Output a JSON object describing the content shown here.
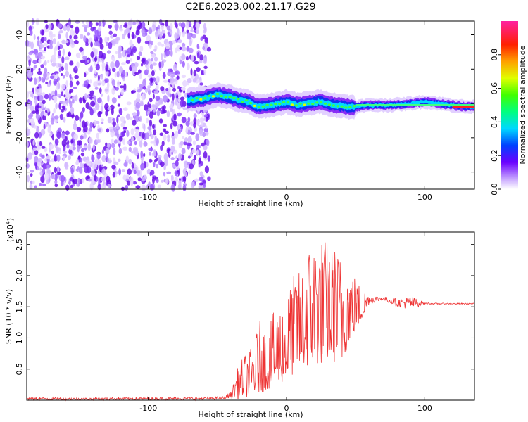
{
  "title": "C2E6.2023.002.21.17.G29",
  "chart_data": [
    {
      "type": "heatmap",
      "xlabel": "Height of straight line (km)",
      "ylabel": "Frequency (Hz)",
      "xlim": [
        -188,
        136
      ],
      "ylim": [
        -50,
        48
      ],
      "xticks": [
        -100,
        0,
        100
      ],
      "yticks": [
        -40,
        -20,
        0,
        20,
        40
      ],
      "grid": false,
      "ridge": {
        "x": [
          -72,
          -60,
          -50,
          -42,
          -35,
          -28,
          -20,
          -12,
          -5,
          0,
          8,
          15,
          25,
          35,
          45,
          50,
          60,
          75,
          90,
          100,
          110,
          120,
          130,
          136
        ],
        "frequency": [
          2,
          3,
          5,
          4,
          2,
          1,
          -2,
          -1,
          0,
          1,
          -1,
          0,
          1,
          -1,
          -2,
          -2,
          -1,
          -1,
          0,
          1,
          0,
          -1,
          -2,
          -2
        ]
      },
      "noise_region": [
        -188,
        -56
      ],
      "colorbar": {
        "label": "Normalized spectral amplitude",
        "range": [
          0.0,
          1.0
        ],
        "ticks": [
          0.0,
          0.2,
          0.4,
          0.6,
          0.8
        ]
      }
    },
    {
      "type": "line",
      "xlabel": "Height of straight line (km)",
      "ylabel": "SNR (10 * v/v)",
      "ylabel_multiplier": "(x10^4)",
      "ylabel_multiplier_base": "(x10",
      "ylabel_multiplier_exp": "4",
      "ylabel_multiplier_close": ")",
      "xlim": [
        -188,
        136
      ],
      "ylim": [
        0,
        2.7
      ],
      "xticks": [
        -100,
        0,
        100
      ],
      "yticks": [
        0.5,
        1.0,
        1.5,
        2.0,
        2.5
      ],
      "yticklabels": [
        "0.5",
        "1.0",
        "1.5",
        "2.0",
        "2.5"
      ],
      "grid": false,
      "color": "#ee3333",
      "series": [
        {
          "x": [
            -188,
            -150,
            -100,
            -60,
            -45,
            -40,
            -35,
            -30,
            -25,
            -20,
            -15,
            -10,
            -5,
            0,
            5,
            10,
            15,
            20,
            25,
            30,
            35,
            40,
            45,
            50,
            55,
            60,
            70,
            80,
            90,
            100,
            110,
            120,
            136
          ],
          "upper": [
            0.05,
            0.04,
            0.05,
            0.05,
            0.06,
            0.15,
            0.55,
            0.75,
            0.85,
            1.3,
            1.15,
            1.4,
            1.5,
            1.65,
            2.0,
            2.1,
            2.45,
            2.6,
            2.6,
            2.6,
            2.5,
            2.3,
            2.1,
            2.0,
            1.8,
            1.68,
            1.67,
            1.63,
            1.68,
            1.57,
            1.56,
            1.56,
            1.56
          ],
          "lower": [
            0.0,
            0.0,
            0.0,
            0.0,
            0.01,
            0.02,
            0.02,
            0.05,
            0.05,
            0.1,
            0.15,
            0.2,
            0.25,
            0.3,
            0.4,
            0.45,
            0.5,
            0.5,
            0.55,
            0.6,
            0.6,
            0.5,
            0.9,
            1.1,
            1.3,
            1.55,
            1.6,
            1.5,
            1.45,
            1.54,
            1.54,
            1.54,
            1.54
          ]
        }
      ]
    }
  ]
}
